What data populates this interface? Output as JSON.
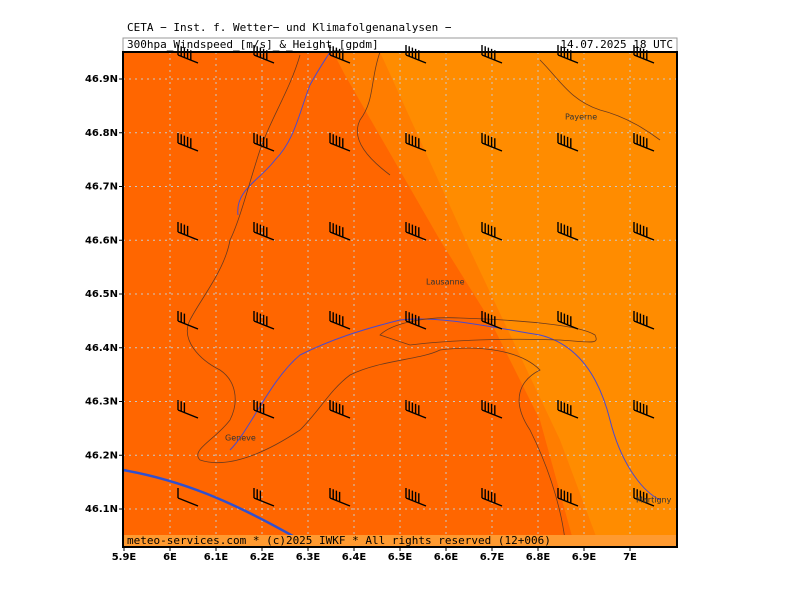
{
  "header": {
    "title": "CETA − Inst. f. Wetter− und Klimafolgenanalysen −",
    "subtitle": "300hpa_Windspeed_[m/s]_&_Height_[gpdm]",
    "valid_time": "14.07.2025 18 UTC"
  },
  "x_labels": [
    "5.9E",
    "6E",
    "6.1E",
    "6.2E",
    "6.3E",
    "6.4E",
    "6.5E",
    "6.6E",
    "6.7E",
    "6.8E",
    "6.9E",
    "7E"
  ],
  "y_labels": [
    "46.9N",
    "46.8N",
    "46.7N",
    "46.6N",
    "46.5N",
    "46.4N",
    "46.3N",
    "46.2N",
    "46.1N"
  ],
  "places": [
    "Payerne",
    "Lausanne",
    "Geneve",
    "Martigny"
  ],
  "footer": "meteo-services.com * (c)2025 IWKF * All rights reserved (12+006)"
}
